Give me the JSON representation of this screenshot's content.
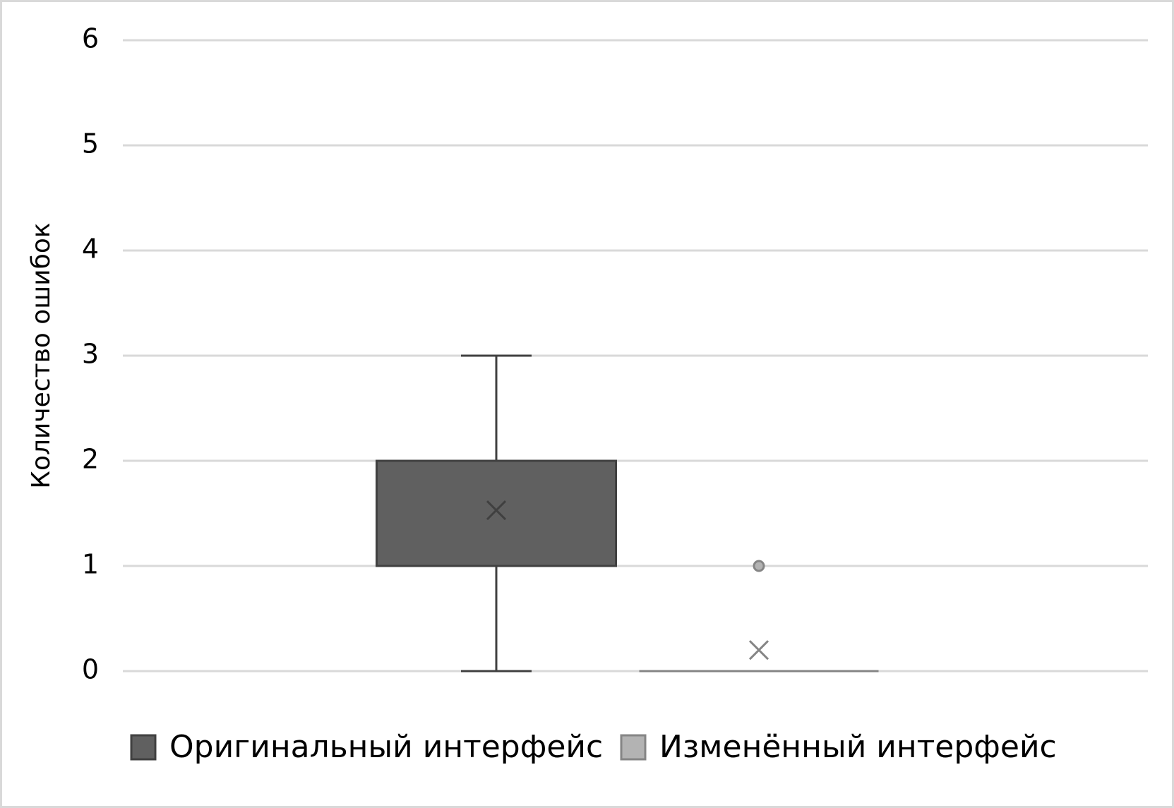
{
  "chart_data": {
    "type": "box",
    "ylabel": "Количество ошибок",
    "ylim": [
      0,
      6
    ],
    "yticks": [
      0,
      1,
      2,
      3,
      4,
      5,
      6
    ],
    "grid": true,
    "legend": "bottom",
    "series": [
      {
        "name": "Оригинальный интерфейс",
        "color": "#606060",
        "edge_color": "#404040",
        "min": 0,
        "q1": 1,
        "median": 1,
        "q3": 2,
        "max": 3,
        "mean": 1.53,
        "outliers": []
      },
      {
        "name": "Изменённый интерфейс",
        "color": "#b3b3b3",
        "edge_color": "#858585",
        "min": 0,
        "q1": 0,
        "median": 0,
        "q3": 0,
        "max": 0,
        "mean": 0.2,
        "outliers": [
          1
        ]
      }
    ]
  }
}
